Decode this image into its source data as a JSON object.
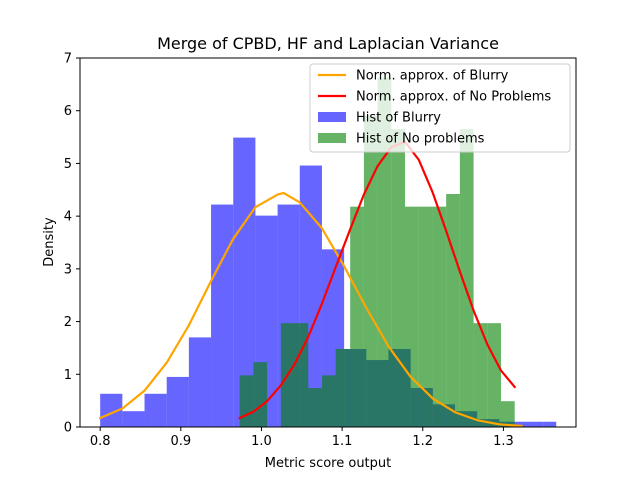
{
  "chart_data": {
    "type": "bar",
    "title": "Merge of CPBD, HF and Laplacian Variance",
    "xlabel": "Metric score output",
    "ylabel": "Density",
    "xlim": [
      0.775,
      1.39
    ],
    "ylim": [
      0,
      7
    ],
    "xticks": [
      "0.8",
      "0.9",
      "1.0",
      "1.1",
      "1.2",
      "1.3"
    ],
    "yticks": [
      "0",
      "1",
      "2",
      "3",
      "4",
      "5",
      "6",
      "7"
    ],
    "grid": false,
    "legend_position": "top-right",
    "histograms": [
      {
        "name": "Hist of Blurry",
        "color": "#0000ff",
        "alpha": 0.6,
        "bins": [
          {
            "x0": 0.8,
            "x1": 0.8275,
            "density": 0.63
          },
          {
            "x0": 0.8275,
            "x1": 0.855,
            "density": 0.3
          },
          {
            "x0": 0.855,
            "x1": 0.8825,
            "density": 0.63
          },
          {
            "x0": 0.8825,
            "x1": 0.91,
            "density": 0.95
          },
          {
            "x0": 0.91,
            "x1": 0.9375,
            "density": 1.7
          },
          {
            "x0": 0.9375,
            "x1": 0.965,
            "density": 4.22
          },
          {
            "x0": 0.965,
            "x1": 0.9925,
            "density": 5.49
          },
          {
            "x0": 0.9925,
            "x1": 1.02,
            "density": 4.01
          },
          {
            "x0": 1.02,
            "x1": 1.0475,
            "density": 4.22
          },
          {
            "x0": 1.0475,
            "x1": 1.075,
            "density": 4.96
          },
          {
            "x0": 1.075,
            "x1": 1.1025,
            "density": 3.37
          },
          {
            "x0": 1.1025,
            "x1": 1.13,
            "density": 1.48
          },
          {
            "x0": 1.13,
            "x1": 1.1575,
            "density": 1.27
          },
          {
            "x0": 1.1575,
            "x1": 1.185,
            "density": 1.48
          },
          {
            "x0": 1.185,
            "x1": 1.2125,
            "density": 0.74
          },
          {
            "x0": 1.2125,
            "x1": 1.24,
            "density": 0.43
          },
          {
            "x0": 1.24,
            "x1": 1.2675,
            "density": 0.3
          },
          {
            "x0": 1.2675,
            "x1": 1.295,
            "density": 0.15
          },
          {
            "x0": 1.295,
            "x1": 1.3225,
            "density": 0.1
          },
          {
            "x0": 1.3225,
            "x1": 1.35,
            "density": 0.1
          },
          {
            "x0": 1.35,
            "x1": 1.3655,
            "density": 0.1
          }
        ]
      },
      {
        "name": "Hist of No problems",
        "color": "#008000",
        "alpha": 0.6,
        "bins": [
          {
            "x0": 0.973,
            "x1": 0.99,
            "density": 0.98
          },
          {
            "x0": 0.99,
            "x1": 1.007,
            "density": 1.23
          },
          {
            "x0": 1.007,
            "x1": 1.024,
            "density": 0.0
          },
          {
            "x0": 1.024,
            "x1": 1.041,
            "density": 1.97
          },
          {
            "x0": 1.041,
            "x1": 1.058,
            "density": 1.97
          },
          {
            "x0": 1.058,
            "x1": 1.075,
            "density": 0.74
          },
          {
            "x0": 1.075,
            "x1": 1.092,
            "density": 0.98
          },
          {
            "x0": 1.092,
            "x1": 1.11,
            "density": 1.48
          },
          {
            "x0": 1.11,
            "x1": 1.127,
            "density": 4.18
          },
          {
            "x0": 1.127,
            "x1": 1.144,
            "density": 5.9
          },
          {
            "x0": 1.144,
            "x1": 1.161,
            "density": 6.63
          },
          {
            "x0": 1.161,
            "x1": 1.178,
            "density": 5.65
          },
          {
            "x0": 1.178,
            "x1": 1.195,
            "density": 4.18
          },
          {
            "x0": 1.195,
            "x1": 1.212,
            "density": 4.18
          },
          {
            "x0": 1.212,
            "x1": 1.229,
            "density": 4.18
          },
          {
            "x0": 1.229,
            "x1": 1.246,
            "density": 4.42
          },
          {
            "x0": 1.246,
            "x1": 1.263,
            "density": 5.65
          },
          {
            "x0": 1.263,
            "x1": 1.28,
            "density": 1.97
          },
          {
            "x0": 1.28,
            "x1": 1.297,
            "density": 1.97
          },
          {
            "x0": 1.297,
            "x1": 1.314,
            "density": 0.49
          }
        ]
      }
    ],
    "series": [
      {
        "name": "Norm. approx. of Blurry",
        "color": "#ffa500",
        "x": [
          0.8,
          0.8275,
          0.855,
          0.8825,
          0.91,
          0.9375,
          0.965,
          0.9925,
          1.02,
          1.0275,
          1.0475,
          1.075,
          1.1025,
          1.13,
          1.1575,
          1.185,
          1.2125,
          1.24,
          1.2675,
          1.295,
          1.3225
        ],
        "y": [
          0.17,
          0.35,
          0.69,
          1.22,
          1.93,
          2.77,
          3.57,
          4.17,
          4.41,
          4.44,
          4.26,
          3.77,
          3.05,
          2.26,
          1.53,
          0.95,
          0.54,
          0.28,
          0.13,
          0.05,
          0.02
        ]
      },
      {
        "name": "Norm. approx. of No Problems",
        "color": "#ff0000",
        "x": [
          0.973,
          0.99,
          1.007,
          1.024,
          1.041,
          1.058,
          1.075,
          1.092,
          1.11,
          1.127,
          1.144,
          1.161,
          1.178,
          1.195,
          1.212,
          1.229,
          1.246,
          1.263,
          1.28,
          1.297,
          1.314
        ],
        "y": [
          0.17,
          0.29,
          0.49,
          0.79,
          1.19,
          1.71,
          2.34,
          3.03,
          3.75,
          4.41,
          4.95,
          5.31,
          5.41,
          5.07,
          4.46,
          3.72,
          2.95,
          2.21,
          1.57,
          1.07,
          0.76
        ]
      }
    ],
    "legend": [
      {
        "label": "Norm. approx. of Blurry",
        "kind": "line",
        "color": "#ffa500"
      },
      {
        "label": "Norm. approx. of No Problems",
        "kind": "line",
        "color": "#ff0000"
      },
      {
        "label": "Hist of Blurry",
        "kind": "patch",
        "color": "#0000ff"
      },
      {
        "label": "Hist of No problems",
        "kind": "patch",
        "color": "#008000"
      }
    ]
  }
}
